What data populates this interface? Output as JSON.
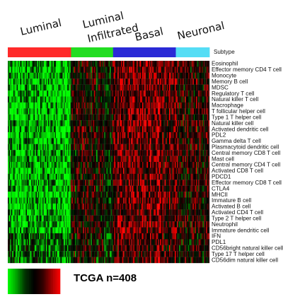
{
  "chart_data": {
    "type": "heatmap",
    "n_samples": 408,
    "subtype_bar_label": "Subtype",
    "footer_text": "TCGA n=408",
    "colorscale": [
      "#00ff00",
      "#00a000",
      "#003000",
      "#000000",
      "#300000",
      "#a00000",
      "#ff0000"
    ],
    "subtypes": [
      {
        "name": "Luminal",
        "color": "#ff2a2a",
        "count": 128
      },
      {
        "name": "Luminal Infiltrated",
        "color": "#22dd22",
        "count": 85
      },
      {
        "name": "Basal",
        "color": "#2a2ad6",
        "count": 127
      },
      {
        "name": "Neuronal",
        "color": "#55ddf5",
        "count": 68
      }
    ],
    "rows": [
      "Eosinophil",
      "Effector memory CD4 T cell",
      "Monocyte",
      "Memory B cell",
      "MDSC",
      "Regulatory T cell",
      "Natural killer T cell",
      "Macrophage",
      "T follicular helper cell",
      "Type 1 T helper cell",
      "Natural killer cell",
      "Activated dendritic cell",
      "PDL2",
      "Gamma delta T cell",
      "Plasmacytoid dendritic cell",
      "Central memory CD8 T cell",
      "Mast cell",
      "Central memory CD4 T cell",
      "Activated CD8 T cell",
      "PDCD1",
      "Effector memory CD8 T cell",
      "CTLA4",
      "MHCII",
      "Immature  B cell",
      "Activated B cell",
      "Activated CD4 T cell",
      "Type 2 T helper cell",
      "Neutrophil",
      "Immature dendritic cell",
      "IFN",
      "PDL1",
      "CD56bright natural killer cell",
      "Type 17 T helper cell",
      "CD56dim natural killer cell"
    ]
  }
}
